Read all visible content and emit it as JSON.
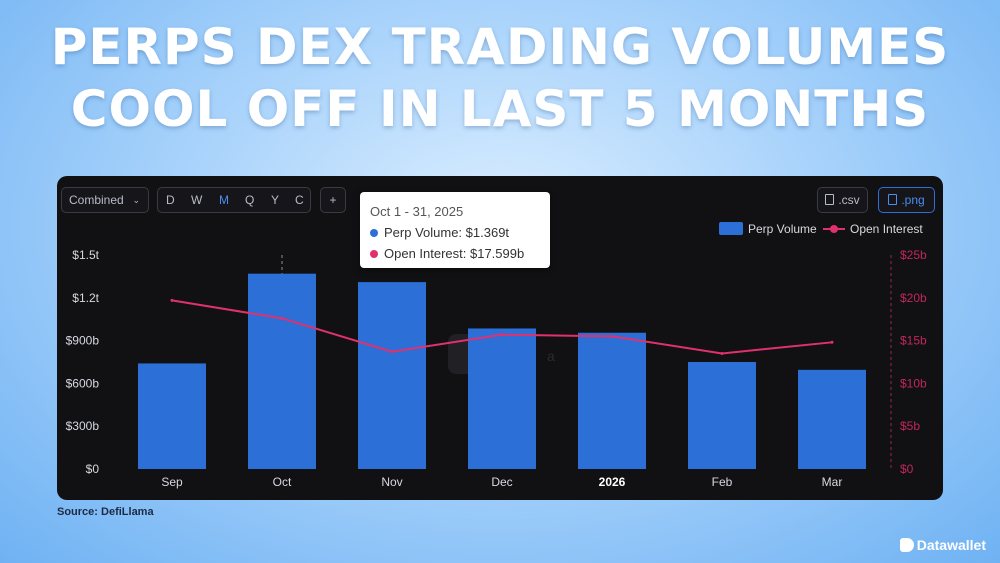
{
  "headline": {
    "line1": "PERPS DEX TRADING VOLUMES",
    "line2": "COOL OFF IN LAST 5 MONTHS"
  },
  "toolbar": {
    "combined_label": "Combined",
    "periods": [
      "D",
      "W",
      "M",
      "Q",
      "Y",
      "C"
    ],
    "active_period": "M",
    "add_label": "+",
    "csv_label": ".csv",
    "png_label": ".png"
  },
  "tooltip": {
    "date": "Oct 1 - 31, 2025",
    "row1": "Perp Volume: $1.369t",
    "row2": "Open Interest: $17.599b"
  },
  "legend": {
    "perp_volume": "Perp Volume",
    "open_interest": "Open Interest"
  },
  "colors": {
    "bar": "#2c6fd6",
    "line": "#e0316e",
    "accent": "#4b8ff0",
    "panel": "#111114"
  },
  "chart_data": {
    "type": "bar",
    "categories": [
      "Sep",
      "Oct",
      "Nov",
      "Dec",
      "2026",
      "Feb",
      "Mar"
    ],
    "series": [
      {
        "name": "Perp Volume",
        "type": "bar",
        "axis": "left",
        "values": [
          0.74,
          1.369,
          1.31,
          0.985,
          0.955,
          0.75,
          0.695
        ]
      },
      {
        "name": "Open Interest",
        "type": "line",
        "axis": "right",
        "values": [
          19.7,
          17.599,
          13.7,
          15.7,
          15.5,
          13.5,
          14.8
        ]
      }
    ],
    "y_left": {
      "ticks": [
        "$0",
        "$300b",
        "$600b",
        "$900b",
        "$1.2t",
        "$1.5t"
      ],
      "range": [
        0,
        1.5
      ],
      "unit": "t"
    },
    "y_right": {
      "ticks": [
        "$0",
        "$5b",
        "$10b",
        "$15b",
        "$20b",
        "$25b"
      ],
      "range": [
        0,
        25
      ],
      "unit": "b"
    },
    "bold_category": "2026",
    "hover_category": "Oct",
    "legend_position": "top-right",
    "grid": false
  },
  "watermark": "a",
  "source": "Source: DefiLlama",
  "brand": "Datawallet"
}
